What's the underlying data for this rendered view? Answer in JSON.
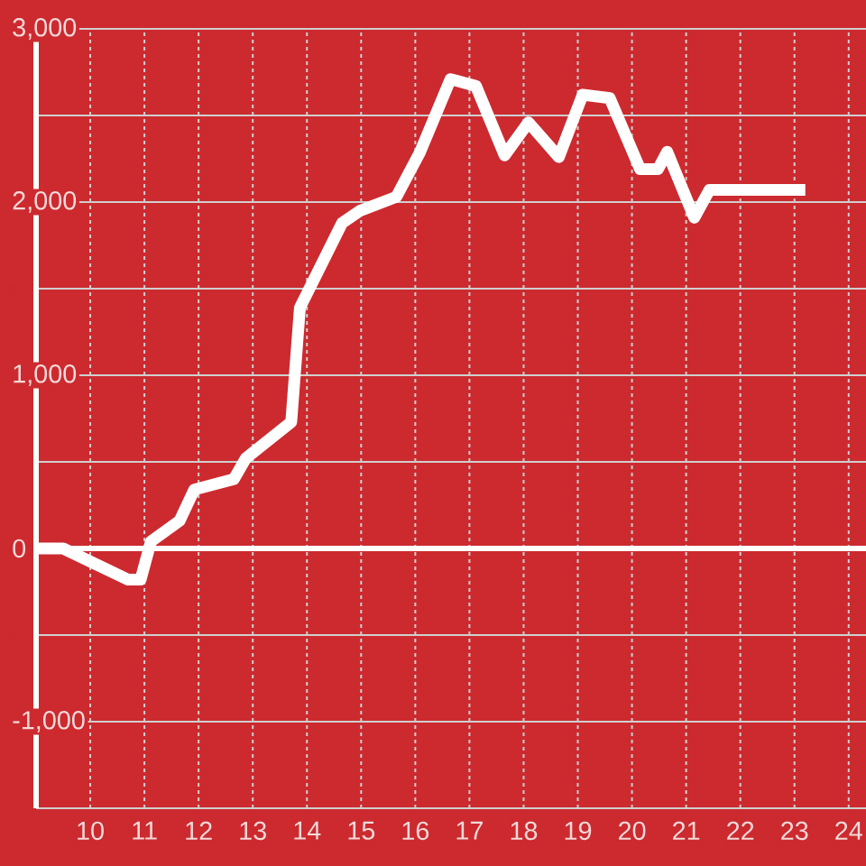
{
  "chart_data": {
    "type": "line",
    "x": [
      9,
      9.5,
      10.7,
      10.93,
      11.12,
      11.65,
      11.92,
      12.65,
      12.87,
      13.71,
      13.87,
      14.65,
      14.98,
      15.65,
      16.09,
      16.65,
      17.12,
      17.65,
      18.09,
      18.65,
      19.09,
      19.59,
      20.15,
      20.48,
      20.65,
      21.15,
      21.43,
      23.2
    ],
    "series": [
      {
        "color": "#ffffff",
        "values": [
          0,
          0,
          -180,
          -180,
          40,
          160,
          340,
          400,
          520,
          730,
          1390,
          1880,
          1950,
          2030,
          2290,
          2710,
          2670,
          2270,
          2460,
          2260,
          2620,
          2600,
          2190,
          2190,
          2290,
          1910,
          2070,
          2070
        ]
      }
    ],
    "xlim": [
      9,
      24.32
    ],
    "xticks": [
      10,
      11,
      12,
      13,
      14,
      15,
      16,
      17,
      18,
      19,
      20,
      21,
      22,
      23,
      24
    ],
    "ylim": [
      -1500,
      3000
    ],
    "yticks": [
      {
        "value": -1000,
        "label": "-1,000"
      },
      {
        "value": -500,
        "label": null
      },
      0,
      {
        "value": 500,
        "label": null
      },
      {
        "value": 1000,
        "label": "1,000"
      },
      {
        "value": 1500,
        "label": null
      },
      {
        "value": 2000,
        "label": "2,000"
      },
      {
        "value": 2500,
        "label": null
      },
      {
        "value": 3000,
        "label": "3,000"
      }
    ],
    "grid": true,
    "line_style": "solid",
    "ref_lines": [
      {
        "axis": "y",
        "value": 0,
        "color": "#ffffff"
      }
    ]
  }
}
